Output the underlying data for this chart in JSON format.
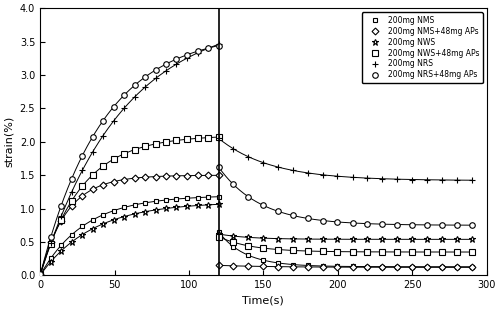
{
  "xlabel": "Time(s)",
  "ylabel": "strain(%)",
  "xlim": [
    0,
    300
  ],
  "ylim": [
    0,
    4
  ],
  "yticks": [
    0,
    0.5,
    1.0,
    1.5,
    2.0,
    2.5,
    3.0,
    3.5,
    4.0
  ],
  "xticks": [
    0,
    50,
    100,
    150,
    200,
    250,
    300
  ],
  "creep_end": 120,
  "series": [
    {
      "label": "200mg NMS",
      "marker": "s",
      "ms": 3.5,
      "creep_max": 1.2,
      "creep_tau": 30,
      "rec_drop": 0.65,
      "rec_end": 0.13,
      "rec_tau": 18
    },
    {
      "label": "200mg NMS+48mg APs",
      "marker": "D",
      "ms": 3.5,
      "creep_max": 1.5,
      "creep_tau": 18,
      "rec_drop": 0.15,
      "rec_end": 0.12,
      "rec_tau": 40
    },
    {
      "label": "200mg NWS",
      "marker": "*",
      "ms": 5,
      "creep_max": 1.1,
      "creep_tau": 35,
      "rec_drop": 0.62,
      "rec_end": 0.54,
      "rec_tau": 20
    },
    {
      "label": "200mg NWS+48mg APs",
      "marker": "s",
      "ms": 4,
      "creep_max": 2.1,
      "creep_tau": 28,
      "rec_drop": 0.58,
      "rec_end": 0.35,
      "rec_tau": 22
    },
    {
      "label": "200mg NRS",
      "marker": "+",
      "ms": 5,
      "creep_max": 3.9,
      "creep_tau": 55,
      "rec_drop": 2.05,
      "rec_end": 1.42,
      "rec_tau": 35
    },
    {
      "label": "200mg NRS+48mg APs",
      "marker": "o",
      "ms": 4,
      "creep_max": 3.65,
      "creep_tau": 42,
      "rec_drop": 1.62,
      "rec_end": 0.75,
      "rec_tau": 28
    }
  ]
}
